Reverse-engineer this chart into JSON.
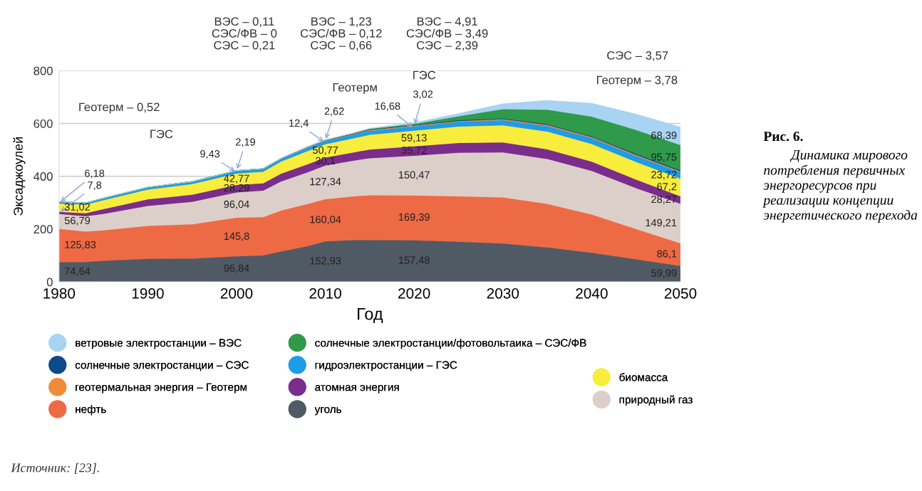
{
  "chart_data": {
    "type": "area",
    "stacked": true,
    "title": "Рис. 6.",
    "subtitle": "Динамика мирового потребления первичных энергоресурсов при реализации концепции энергетического перехода",
    "xlabel": "Год",
    "ylabel": "Эксаджоулей",
    "x": [
      1980,
      1983,
      1985,
      1990,
      1995,
      2000,
      2003,
      2005,
      2008,
      2010,
      2013,
      2015,
      2020,
      2025,
      2030,
      2035,
      2040,
      2045,
      2050
    ],
    "xlim": [
      1980,
      2050
    ],
    "xticks": [
      1980,
      1990,
      2000,
      2010,
      2020,
      2030,
      2040,
      2050
    ],
    "ylim": [
      0,
      800
    ],
    "yticks": [
      0,
      200,
      400,
      600,
      800
    ],
    "grid": "y",
    "legend": "bottom",
    "series": [
      {
        "name": "уголь",
        "color": "#505a64",
        "values": [
          74.64,
          75,
          80,
          87,
          88,
          96.84,
          100,
          115,
          135,
          152.93,
          158,
          158,
          157.48,
          152,
          145,
          130,
          110,
          85,
          59.99
        ],
        "value_labels": [
          "74,64",
          null,
          null,
          null,
          null,
          "96,84",
          null,
          null,
          null,
          "152,93",
          null,
          null,
          "157,48",
          null,
          null,
          null,
          null,
          null,
          "59,99"
        ]
      },
      {
        "name": "нефть",
        "color": "#ee6a45",
        "values": [
          125.83,
          115,
          115,
          125,
          130,
          145.8,
          145,
          155,
          160,
          160.04,
          165,
          170,
          169.39,
          172,
          175,
          165,
          145,
          115,
          86.1
        ],
        "value_labels": [
          "125,83",
          null,
          null,
          null,
          null,
          "145,8",
          null,
          null,
          null,
          "160,04",
          null,
          null,
          "169,39",
          null,
          null,
          null,
          null,
          null,
          "86,1"
        ]
      },
      {
        "name": "природный газ",
        "color": "#dccfca",
        "values": [
          56.79,
          58,
          62,
          75,
          85,
          96.04,
          100,
          110,
          120,
          127.34,
          135,
          140,
          150.47,
          165,
          170,
          170,
          165,
          155,
          149.21
        ],
        "value_labels": [
          "56,79",
          null,
          null,
          null,
          null,
          "96,04",
          null,
          null,
          null,
          "127,34",
          null,
          null,
          "150,47",
          null,
          null,
          null,
          null,
          null,
          "149,21"
        ]
      },
      {
        "name": "атомная энергия",
        "color": "#7b2d8c",
        "values": [
          7.8,
          12,
          18,
          25,
          27,
          28.29,
          28,
          29,
          30,
          30.1,
          31,
          33,
          35.72,
          37,
          38,
          37,
          35,
          32,
          28.27
        ],
        "value_labels": [
          "7,8",
          null,
          null,
          null,
          null,
          "28,29",
          null,
          null,
          null,
          "30,1",
          null,
          null,
          "35,72",
          null,
          null,
          null,
          null,
          null,
          "28,27"
        ]
      },
      {
        "name": "биомасса",
        "color": "#f8ec3c",
        "values": [
          31.02,
          32,
          34,
          37,
          40,
          42.77,
          44,
          46,
          50,
          50.77,
          53,
          56,
          59.13,
          62,
          65,
          67,
          67,
          67,
          67.2
        ],
        "value_labels": [
          "31,02",
          null,
          null,
          null,
          null,
          "42,77",
          null,
          null,
          null,
          "50,77",
          null,
          null,
          "59,13",
          null,
          null,
          null,
          null,
          null,
          "67,2"
        ]
      },
      {
        "name": "гидроэлектростанции – ГЭС",
        "color": "#1f9ce8",
        "values": [
          6.18,
          6,
          7,
          8,
          8,
          9.43,
          10,
          10,
          12,
          12.4,
          14,
          15,
          16.68,
          18,
          20,
          21,
          22,
          23,
          23.72
        ],
        "value_labels": [
          "6,18",
          null,
          null,
          null,
          null,
          "9,43",
          null,
          null,
          null,
          "12,4",
          null,
          null,
          "16,68",
          null,
          null,
          null,
          null,
          null,
          "23,72"
        ]
      },
      {
        "name": "геотермальная энергия – Геотерм",
        "color": "#f08c38",
        "values": [
          0.52,
          1,
          1,
          1,
          2,
          2.19,
          2,
          2,
          3,
          2.62,
          3,
          3,
          3.02,
          3,
          3,
          4,
          4,
          4,
          3.78
        ],
        "value_labels": [
          null,
          null,
          null,
          null,
          null,
          "2,19",
          null,
          null,
          null,
          "2,62",
          null,
          null,
          "3,02",
          null,
          null,
          null,
          null,
          null,
          null
        ]
      },
      {
        "name": "солнечные электростанции – СЭС",
        "color": "#0d4a8c",
        "values": [
          0,
          0,
          0,
          0,
          0,
          0.21,
          0,
          0,
          1,
          0.66,
          1,
          2,
          2.39,
          3,
          3,
          3,
          3,
          4,
          3.57
        ]
      },
      {
        "name": "солнечные электростанции/фотовольтаика – СЭС/ФВ",
        "color": "#2e9a4a",
        "values": [
          0,
          0,
          0,
          0,
          0,
          0,
          0,
          0,
          0,
          0.12,
          1,
          2,
          3.49,
          15,
          35,
          55,
          75,
          90,
          95.75
        ],
        "value_labels": [
          null,
          null,
          null,
          null,
          null,
          null,
          null,
          null,
          null,
          null,
          null,
          null,
          null,
          null,
          null,
          null,
          null,
          null,
          "95,75"
        ]
      },
      {
        "name": "ветровые электростанции – ВЭС",
        "color": "#a9d3f2",
        "values": [
          0,
          0,
          0,
          0,
          0,
          0.11,
          0,
          0,
          1,
          1.23,
          2,
          3,
          4.91,
          10,
          20,
          35,
          50,
          60,
          68.39
        ],
        "value_labels": [
          null,
          null,
          null,
          null,
          null,
          null,
          null,
          null,
          null,
          null,
          null,
          null,
          null,
          null,
          null,
          null,
          null,
          null,
          "68,39"
        ]
      }
    ],
    "annotations": [
      "Геотерм – 0,52",
      "ВЭС – 0,11\nСЭС/ФВ – 0\nСЭС – 0,21",
      "ВЭС – 1,23\nСЭС/ФВ – 0,12\nСЭС – 0,66",
      "ВЭС – 4,91\nСЭС/ФВ – 3,49\nСЭС – 2,39",
      "СЭС – 3,57",
      "Геотерм – 3,78",
      "ГЭС",
      "Геотерм",
      "ГЭС",
      "Источник: [23]."
    ]
  }
}
